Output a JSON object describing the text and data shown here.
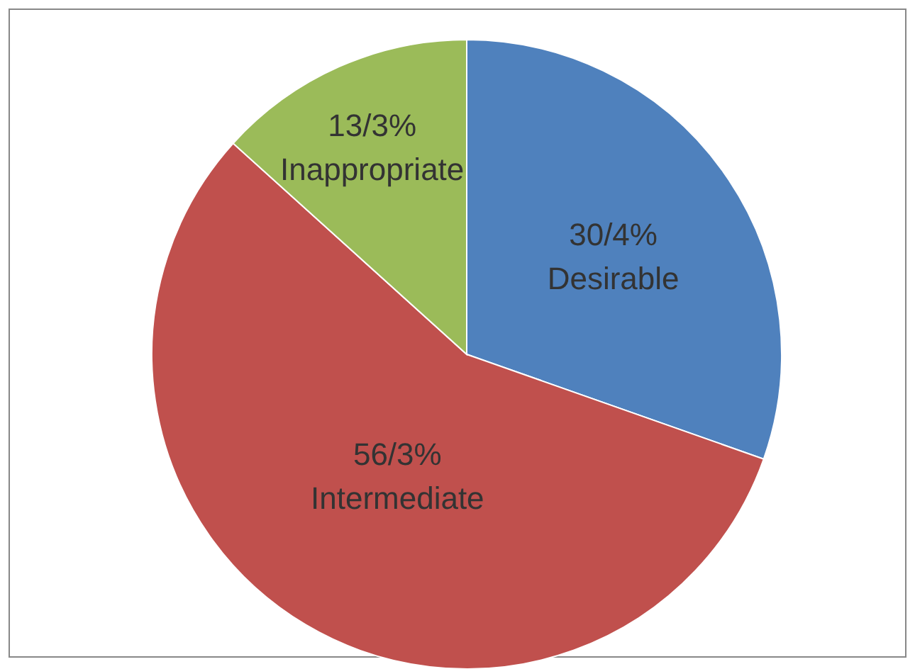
{
  "chart_data": {
    "type": "pie",
    "categories": [
      "Desirable",
      "Intermediate",
      "Inappropriate"
    ],
    "values": [
      30.4,
      56.3,
      13.3
    ],
    "colors": [
      "#4f81bd",
      "#c0504d",
      "#9bbb59"
    ],
    "value_labels": [
      "30/4%",
      "56/3%",
      "13/3%"
    ],
    "legend": false
  }
}
